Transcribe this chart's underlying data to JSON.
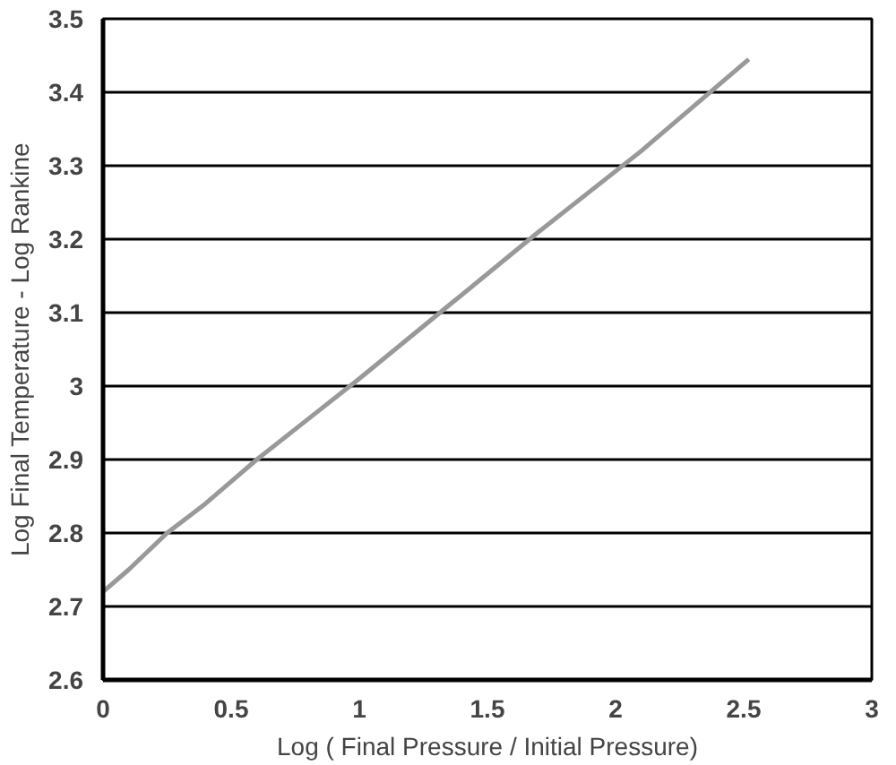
{
  "chart_data": {
    "type": "line",
    "xlabel": "Log ( Final Pressure / Initial Pressure)",
    "ylabel": "Log Final Temperature - Log Rankine",
    "x": [
      0,
      0.1,
      0.25,
      0.4,
      0.6,
      0.8,
      1.0,
      1.35,
      1.7,
      2.1,
      2.52
    ],
    "series": [
      {
        "color": "#999999",
        "values": [
          2.72,
          2.75,
          2.8,
          2.84,
          2.9,
          2.955,
          3.01,
          3.11,
          3.21,
          3.32,
          3.445
        ]
      }
    ],
    "xlim": [
      0,
      3
    ],
    "xticks": [
      0,
      0.5,
      1,
      1.5,
      2,
      2.5,
      3
    ],
    "ylim": [
      2.6,
      3.5
    ],
    "yticks": [
      2.6,
      2.7,
      2.8,
      2.9,
      3,
      3.1,
      3.2,
      3.3,
      3.4,
      3.5
    ],
    "grid": "y",
    "marker": "none",
    "line_style": "solid"
  }
}
